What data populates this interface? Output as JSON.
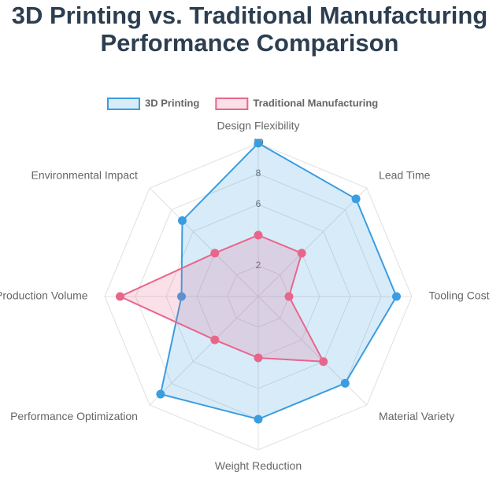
{
  "chart_data": {
    "type": "radar",
    "title": [
      "3D Printing vs. Traditional Manufacturing",
      "Performance Comparison"
    ],
    "categories": [
      "Design Flexibility",
      "Lead Time",
      "Tooling Cost",
      "Material Variety",
      "Weight Reduction",
      "Performance Optimization",
      "Production Volume",
      "Environmental Impact"
    ],
    "series": [
      {
        "name": "3D Printing",
        "color": "#3a9de0",
        "values": [
          10,
          9,
          9,
          8,
          8,
          9,
          5,
          7
        ]
      },
      {
        "name": "Traditional Manufacturing",
        "color": "#e8668a",
        "values": [
          4,
          4,
          2,
          6,
          4,
          4,
          9,
          4
        ]
      }
    ],
    "rlim": [
      0,
      10
    ],
    "rticks": [
      2,
      4,
      6,
      8,
      10
    ],
    "grid": true,
    "legend": "top"
  }
}
